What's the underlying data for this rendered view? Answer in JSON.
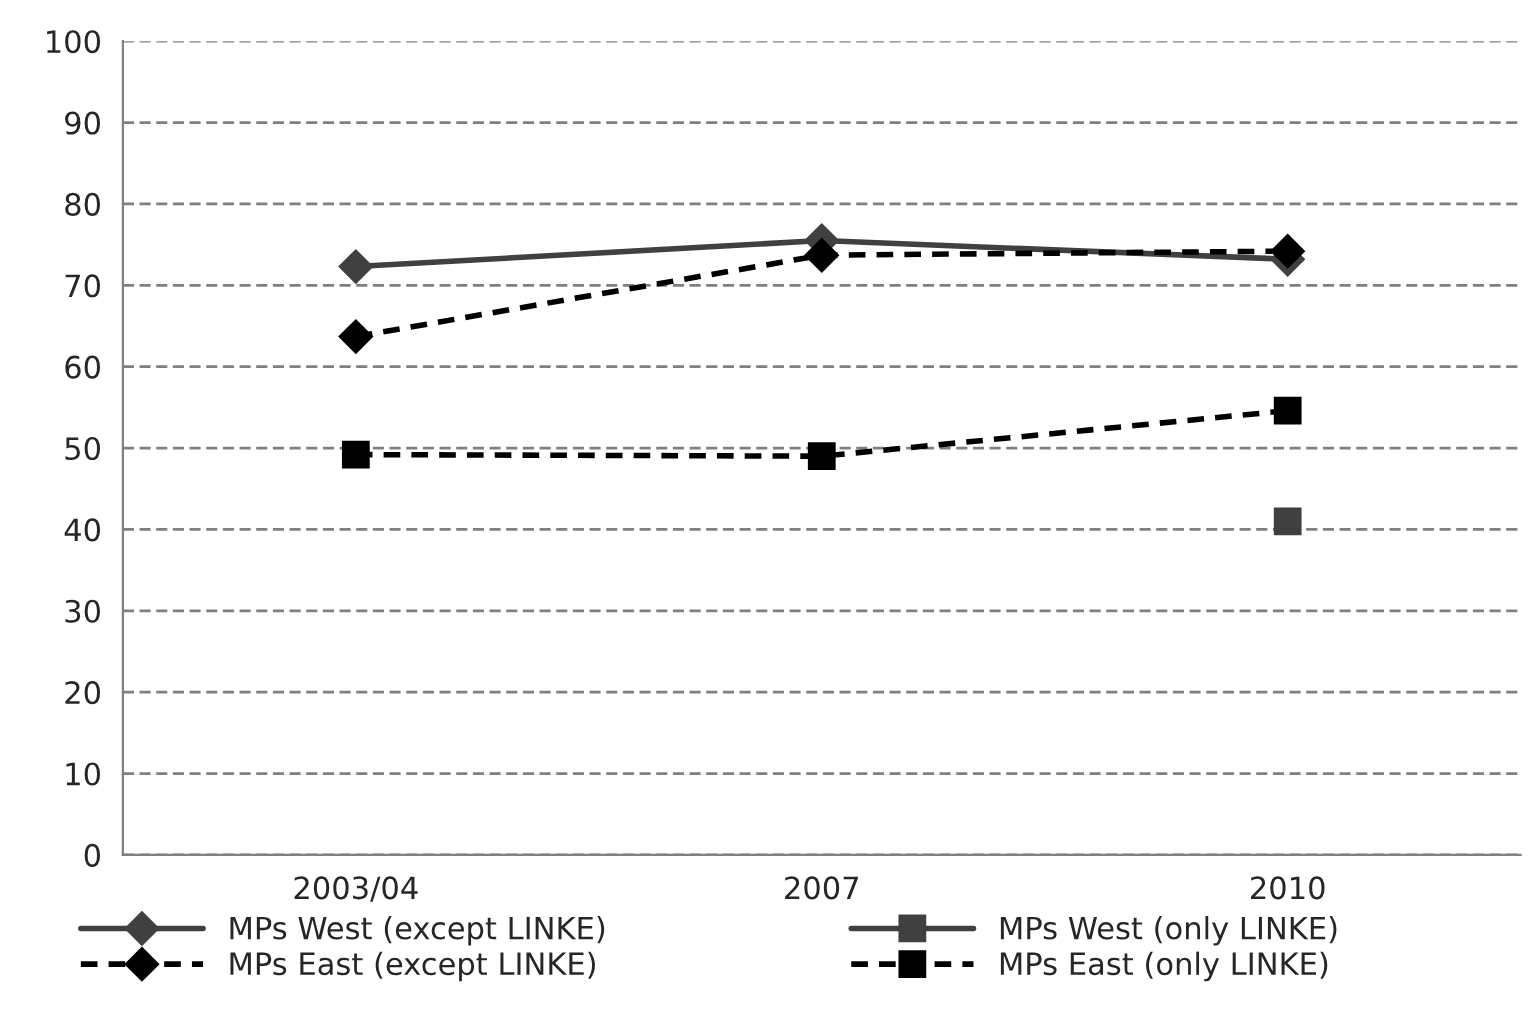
{
  "chart_data": {
    "type": "line",
    "categories": [
      "2003/04",
      "2007",
      "2010"
    ],
    "series": [
      {
        "name": "MPs West (except LINKE)",
        "color": "#404040",
        "values": [
          72.3,
          75.5,
          73.2
        ],
        "marker": "diamond",
        "line_style": "solid"
      },
      {
        "name": "MPs West (only LINKE)",
        "color": "#404040",
        "values": [
          null,
          null,
          41.0
        ],
        "marker": "square",
        "line_style": "solid"
      },
      {
        "name": "MPs East (except LINKE)",
        "color": "#000000",
        "values": [
          63.7,
          73.7,
          74.2
        ],
        "marker": "diamond",
        "line_style": "dashed"
      },
      {
        "name": "MPs East (only LINKE)",
        "color": "#000000",
        "values": [
          49.2,
          49.0,
          54.6
        ],
        "marker": "square",
        "line_style": "dashed"
      }
    ],
    "ylim": [
      0,
      100
    ],
    "yticks": [
      0,
      10,
      20,
      30,
      40,
      50,
      60,
      70,
      80,
      90,
      100
    ],
    "grid": "y",
    "legend": "bottom"
  }
}
